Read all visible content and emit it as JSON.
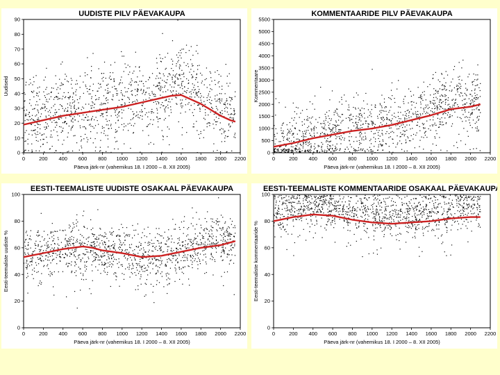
{
  "figure": {
    "background": "#ffffcc",
    "point_color": "#000000",
    "trend_color": "#cc2222"
  },
  "chart_data": [
    {
      "id": "news-volume",
      "type": "scatter",
      "title": "UUDISTE PILV PÄEVAKAUPA",
      "xlabel": "Päeva järk-nr (vahemikus 18. I 2000 – 8. XII 2005)",
      "ylabel": "Uudiseid",
      "xlim": [
        0,
        2200
      ],
      "ylim": [
        0,
        90
      ],
      "xticks": [
        0,
        200,
        400,
        600,
        800,
        1000,
        1200,
        1400,
        1600,
        1800,
        2000,
        2200
      ],
      "yticks": [
        0,
        10,
        20,
        30,
        40,
        50,
        60,
        70,
        80,
        90
      ],
      "trend": {
        "x": [
          0,
          200,
          400,
          600,
          800,
          1000,
          1200,
          1400,
          1500,
          1600,
          1700,
          1800,
          1900,
          2000,
          2100,
          2150
        ],
        "y": [
          19,
          22,
          25,
          27,
          29,
          31,
          34,
          37,
          38.5,
          39,
          36,
          33,
          29,
          25,
          22,
          21
        ]
      },
      "scatter": {
        "n_points": 1250,
        "mean_x": [
          0,
          200,
          400,
          600,
          800,
          1000,
          1200,
          1400,
          1500,
          1600,
          1700,
          1800,
          1900,
          2000,
          2100,
          2150
        ],
        "mean_y": [
          24,
          26,
          29,
          31,
          34,
          35,
          36,
          40,
          45,
          50,
          44,
          38,
          33,
          29,
          26,
          25
        ],
        "spread": 13
      }
    },
    {
      "id": "comments-volume",
      "type": "scatter",
      "title": "KOMMENTAARIDE PILV PÄEVAKAUPA",
      "xlabel": "Päeva järk-nr (vahemikus 18. I 2000 – 8. XII 2005)",
      "ylabel": "Kommentaare",
      "xlim": [
        0,
        2200
      ],
      "ylim": [
        0,
        5500
      ],
      "xticks": [
        0,
        200,
        400,
        600,
        800,
        1000,
        1200,
        1400,
        1600,
        1800,
        2000,
        2200
      ],
      "yticks": [
        0,
        500,
        1000,
        1500,
        2000,
        2500,
        3000,
        3500,
        4000,
        4500,
        5000,
        5500
      ],
      "trend": {
        "x": [
          0,
          200,
          400,
          600,
          800,
          1000,
          1200,
          1400,
          1600,
          1800,
          2000,
          2100
        ],
        "y": [
          250,
          400,
          600,
          750,
          900,
          1000,
          1150,
          1350,
          1550,
          1800,
          1900,
          2000
        ]
      },
      "scatter": {
        "n_points": 1250,
        "mean_x": [
          0,
          200,
          400,
          600,
          800,
          1000,
          1200,
          1400,
          1600,
          1700,
          1800,
          2000,
          2100
        ],
        "mean_y": [
          200,
          400,
          650,
          850,
          1000,
          1100,
          1200,
          1450,
          1700,
          2000,
          2100,
          2200,
          2250
        ],
        "spread": 700
      }
    },
    {
      "id": "estonian-news-share",
      "type": "scatter",
      "title": "EESTI-TEEMALISTE UUDISTE OSAKAAL PÄEVAKAUPA",
      "xlabel": "Päeva järk-nr (vahemikus 18. I 2000 – 8. XII 2005)",
      "ylabel": "Eesti-teemaliste uudiste %",
      "xlim": [
        0,
        2200
      ],
      "ylim": [
        0,
        100
      ],
      "xticks": [
        0,
        200,
        400,
        600,
        800,
        1000,
        1200,
        1400,
        1600,
        1800,
        2000,
        2200
      ],
      "yticks": [
        0,
        20,
        40,
        60,
        80,
        100
      ],
      "trend": {
        "x": [
          0,
          200,
          400,
          600,
          700,
          800,
          1000,
          1200,
          1400,
          1600,
          1800,
          2000,
          2150
        ],
        "y": [
          53,
          56,
          59,
          61,
          60,
          58,
          56,
          53,
          54,
          57,
          60,
          62,
          65
        ]
      },
      "scatter": {
        "n_points": 1250,
        "mean_x": [
          0,
          200,
          400,
          600,
          800,
          1000,
          1200,
          1400,
          1600,
          1800,
          2000,
          2150
        ],
        "mean_y": [
          55,
          57,
          59,
          61,
          59,
          57,
          52,
          55,
          58,
          63,
          65,
          66
        ],
        "spread": 10
      }
    },
    {
      "id": "estonian-comments-share",
      "type": "scatter",
      "title": "EESTI-TEEMALISTE KOMMENTAARIDE OSAKAAL PÄEVAKAUPA",
      "xlabel": "Päeva järk-nr (vahemikus 18. I 2000 – 8. XII 2005)",
      "ylabel": "Eesti-teemaliste kommentaaride %",
      "xlim": [
        0,
        2200
      ],
      "ylim": [
        0,
        100
      ],
      "xticks": [
        0,
        200,
        400,
        600,
        800,
        1000,
        1200,
        1400,
        1600,
        1800,
        2000,
        2200
      ],
      "yticks": [
        0,
        20,
        40,
        60,
        80,
        100
      ],
      "trend": {
        "x": [
          0,
          200,
          400,
          600,
          800,
          1000,
          1200,
          1400,
          1600,
          1800,
          2000,
          2100
        ],
        "y": [
          80,
          83,
          85,
          84,
          81,
          79,
          78,
          79,
          80,
          82,
          83,
          83
        ]
      },
      "scatter": {
        "n_points": 1250,
        "mean_x": [
          0,
          200,
          400,
          600,
          800,
          1000,
          1200,
          1400,
          1600,
          1800,
          2000,
          2100
        ],
        "mean_y": [
          88,
          90,
          91,
          90,
          87,
          85,
          83,
          85,
          87,
          89,
          90,
          90
        ],
        "spread": 8
      }
    }
  ]
}
